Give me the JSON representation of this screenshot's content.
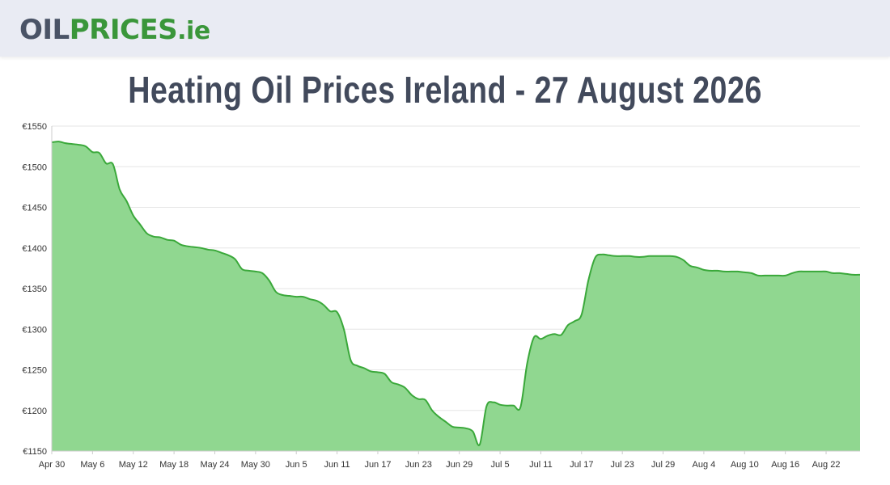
{
  "header": {
    "logo_part1": "OIL",
    "logo_part2": "PRICES",
    "logo_part3": ".ie"
  },
  "page_title": "Heating Oil Prices Ireland - 27 August 2026",
  "colors": {
    "line": "#3aa83a",
    "fill": "#90d790",
    "grid": "#e6e6e6",
    "text": "#333333"
  },
  "chart_data": {
    "type": "area",
    "title": "Heating Oil Prices Ireland - 27 August 2026",
    "xlabel": "",
    "ylabel": "",
    "ylim": [
      1150,
      1550
    ],
    "yticks": [
      "€1150",
      "€1200",
      "€1250",
      "€1300",
      "€1350",
      "€1400",
      "€1450",
      "€1500",
      "€1550"
    ],
    "ytick_values": [
      1150,
      1200,
      1250,
      1300,
      1350,
      1400,
      1450,
      1500,
      1550
    ],
    "xlim": [
      0,
      119
    ],
    "xticks": [
      {
        "day": 0,
        "label": "Apr 30"
      },
      {
        "day": 6,
        "label": "May 6"
      },
      {
        "day": 12,
        "label": "May 12"
      },
      {
        "day": 18,
        "label": "May 18"
      },
      {
        "day": 24,
        "label": "May 24"
      },
      {
        "day": 30,
        "label": "May 30"
      },
      {
        "day": 36,
        "label": "Jun 5"
      },
      {
        "day": 42,
        "label": "Jun 11"
      },
      {
        "day": 48,
        "label": "Jun 17"
      },
      {
        "day": 54,
        "label": "Jun 23"
      },
      {
        "day": 60,
        "label": "Jun 29"
      },
      {
        "day": 66,
        "label": "Jul 5"
      },
      {
        "day": 72,
        "label": "Jul 11"
      },
      {
        "day": 78,
        "label": "Jul 17"
      },
      {
        "day": 84,
        "label": "Jul 23"
      },
      {
        "day": 90,
        "label": "Jul 29"
      },
      {
        "day": 96,
        "label": "Aug 4"
      },
      {
        "day": 102,
        "label": "Aug 10"
      },
      {
        "day": 108,
        "label": "Aug 16"
      },
      {
        "day": 114,
        "label": "Aug 22"
      }
    ],
    "grid": true,
    "series": [
      {
        "x": [
          0,
          1,
          2,
          3,
          4,
          5,
          6,
          7,
          8,
          9,
          10,
          11,
          12,
          13,
          14,
          15,
          16,
          17,
          18,
          19,
          20,
          21,
          22,
          23,
          24,
          25,
          26,
          27,
          28,
          29,
          30,
          31,
          32,
          33,
          34,
          35,
          36,
          37,
          38,
          39,
          40,
          41,
          42,
          43,
          44,
          45,
          46,
          47,
          48,
          49,
          50,
          51,
          52,
          53,
          54,
          55,
          56,
          57,
          58,
          59,
          60,
          61,
          62,
          63,
          64,
          65,
          66,
          67,
          68,
          69,
          70,
          71,
          72,
          73,
          74,
          75,
          76,
          77,
          78,
          79,
          80,
          81,
          82,
          83,
          84,
          85,
          86,
          87,
          88,
          89,
          90,
          91,
          92,
          93,
          94,
          95,
          96,
          97,
          98,
          99,
          100,
          101,
          102,
          103,
          104,
          105,
          106,
          107,
          108,
          109,
          110,
          111,
          112,
          113,
          114,
          115,
          116,
          117,
          118,
          119
        ],
        "values": [
          1530,
          1531,
          1529,
          1528,
          1527,
          1525,
          1518,
          1517,
          1504,
          1503,
          1472,
          1458,
          1440,
          1429,
          1418,
          1414,
          1413,
          1410,
          1409,
          1404,
          1402,
          1401,
          1400,
          1398,
          1397,
          1394,
          1391,
          1386,
          1374,
          1372,
          1371,
          1369,
          1360,
          1346,
          1342,
          1341,
          1340,
          1340,
          1337,
          1335,
          1330,
          1322,
          1321,
          1300,
          1262,
          1255,
          1252,
          1248,
          1247,
          1245,
          1235,
          1232,
          1228,
          1219,
          1214,
          1213,
          1200,
          1192,
          1186,
          1180,
          1179,
          1178,
          1174,
          1158,
          1205,
          1210,
          1207,
          1206,
          1206,
          1204,
          1258,
          1290,
          1288,
          1292,
          1294,
          1293,
          1305,
          1310,
          1318,
          1360,
          1388,
          1392,
          1391,
          1390,
          1390,
          1390,
          1389,
          1389,
          1390,
          1390,
          1390,
          1390,
          1389,
          1385,
          1378,
          1376,
          1373,
          1372,
          1372,
          1371,
          1371,
          1371,
          1370,
          1369,
          1366,
          1366,
          1366,
          1366,
          1366,
          1369,
          1371,
          1371,
          1371,
          1371,
          1371,
          1369,
          1369,
          1368,
          1367,
          1367
        ]
      }
    ]
  }
}
